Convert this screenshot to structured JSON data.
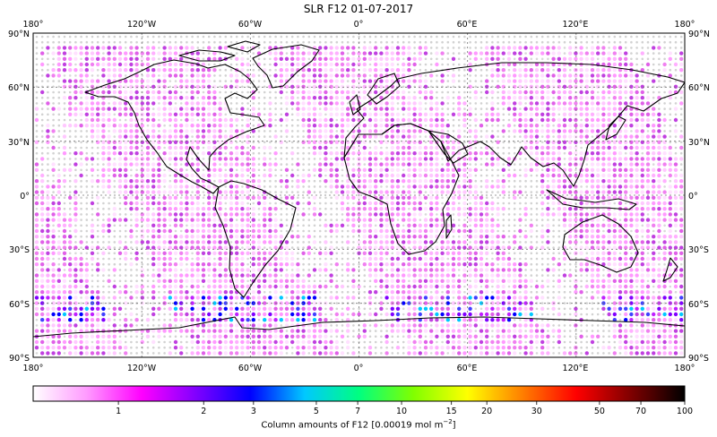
{
  "title": "SLR F12 01-07-2017",
  "map": {
    "lon_ticks_top": [
      "180°",
      "120°W",
      "60°W",
      "0°",
      "60°E",
      "120°E",
      "180°"
    ],
    "lon_ticks_bottom": [
      "180°",
      "120°W",
      "60°W",
      "0°",
      "60°E",
      "120°E",
      "180°"
    ],
    "lat_ticks_left": [
      "90°N",
      "60°N",
      "30°N",
      "0°",
      "30°S",
      "60°S",
      "90°S"
    ],
    "lat_ticks_right": [
      "90°N",
      "60°N",
      "30°N",
      "0°",
      "30°S",
      "60°S",
      "90°S"
    ],
    "lon_range": [
      -180,
      180
    ],
    "lat_range": [
      -90,
      90
    ],
    "grid": true,
    "projection": "PlateCarree",
    "colors": {
      "no_data": "#d0d0d0",
      "land": "#ffffff",
      "coast": "#000000"
    }
  },
  "colorbar": {
    "ticks": [
      "1",
      "2",
      "3",
      "5",
      "7",
      "10",
      "15",
      "20",
      "30",
      "50",
      "70",
      "100"
    ],
    "tick_values": [
      1,
      2,
      3,
      5,
      7,
      10,
      15,
      20,
      30,
      50,
      70,
      100
    ],
    "range": [
      0.5,
      100
    ],
    "scale": "log",
    "label_prefix": "Column amounts of F12 [0.00019 mol m",
    "label_exp": "−2",
    "label_suffix": "]",
    "stops": [
      "#ffffff",
      "#ff99ff",
      "#ff00ff",
      "#8000ff",
      "#0000ff",
      "#00c8ff",
      "#00ff80",
      "#80ff00",
      "#ffff00",
      "#ff8000",
      "#ff0000",
      "#800000",
      "#000000"
    ]
  }
}
